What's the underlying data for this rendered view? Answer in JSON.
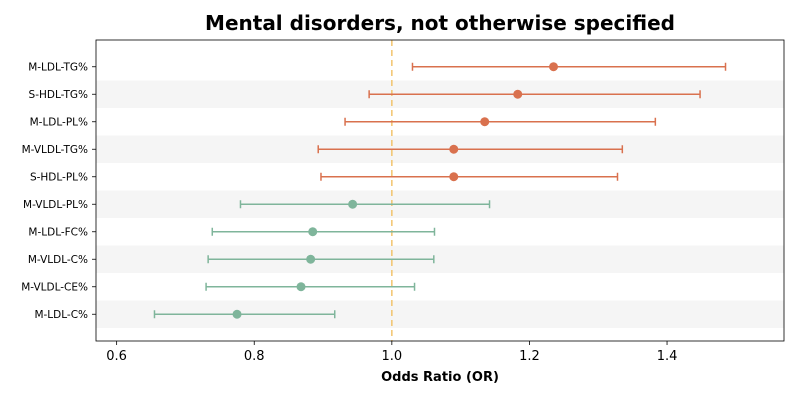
{
  "chart_data": {
    "type": "forest",
    "title": "Mental disorders, not otherwise specified",
    "xlabel": "Odds Ratio (OR)",
    "xlim": [
      0.57,
      1.57
    ],
    "xticks": [
      0.6,
      0.8,
      1.0,
      1.2,
      1.4
    ],
    "reference_line": 1.0,
    "band_shading": true,
    "colors": {
      "above_reference": "#D9714E",
      "below_reference": "#7FB59B",
      "reference_line": "#F2C46D",
      "band": "#F5F5F5"
    },
    "rows": [
      {
        "label": "M-LDL-TG%",
        "or": 1.235,
        "ci_low": 1.03,
        "ci_high": 1.485
      },
      {
        "label": "S-HDL-TG%",
        "or": 1.183,
        "ci_low": 0.967,
        "ci_high": 1.448
      },
      {
        "label": "M-LDL-PL%",
        "or": 1.135,
        "ci_low": 0.932,
        "ci_high": 1.383
      },
      {
        "label": "M-VLDL-TG%",
        "or": 1.09,
        "ci_low": 0.893,
        "ci_high": 1.335
      },
      {
        "label": "S-HDL-PL%",
        "or": 1.09,
        "ci_low": 0.897,
        "ci_high": 1.328
      },
      {
        "label": "M-VLDL-PL%",
        "or": 0.943,
        "ci_low": 0.78,
        "ci_high": 1.142
      },
      {
        "label": "M-LDL-FC%",
        "or": 0.885,
        "ci_low": 0.739,
        "ci_high": 1.062
      },
      {
        "label": "M-VLDL-C%",
        "or": 0.882,
        "ci_low": 0.733,
        "ci_high": 1.061
      },
      {
        "label": "M-VLDL-CE%",
        "or": 0.868,
        "ci_low": 0.73,
        "ci_high": 1.033
      },
      {
        "label": "M-LDL-C%",
        "or": 0.775,
        "ci_low": 0.655,
        "ci_high": 0.917
      }
    ]
  }
}
